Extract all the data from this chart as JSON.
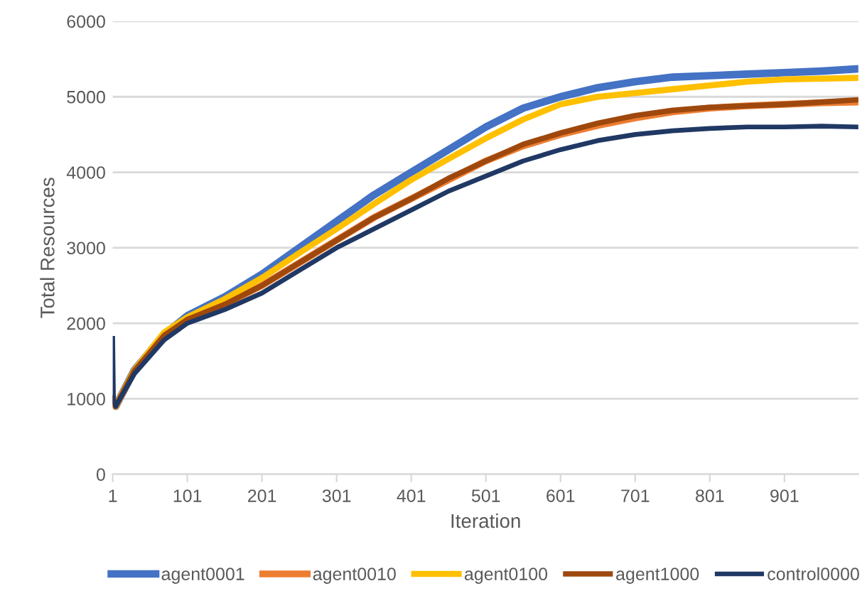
{
  "chart_data": {
    "type": "line",
    "xlabel": "Iteration",
    "ylabel": "Total Resources",
    "xlim": [
      1,
      1000
    ],
    "xticks": [
      1,
      101,
      201,
      301,
      401,
      501,
      601,
      701,
      801,
      901
    ],
    "ylim": [
      0,
      6000
    ],
    "yticks": [
      0,
      1000,
      2000,
      3000,
      4000,
      5000,
      6000
    ],
    "grid": "y",
    "legend": "bottom",
    "marker": "none",
    "line_style": "solid",
    "series": [
      {
        "name": "agent0001",
        "color": "#4472c4",
        "x": [
          1,
          5,
          30,
          70,
          101,
          151,
          201,
          251,
          301,
          351,
          401,
          451,
          501,
          551,
          601,
          651,
          701,
          751,
          801,
          851,
          901,
          951,
          1000
        ],
        "values": [
          1000,
          900,
          1380,
          1850,
          2100,
          2350,
          2650,
          3000,
          3350,
          3700,
          4000,
          4300,
          4600,
          4850,
          5000,
          5120,
          5200,
          5260,
          5280,
          5300,
          5320,
          5340,
          5370
        ]
      },
      {
        "name": "agent0010",
        "color": "#ed7d31",
        "x": [
          1,
          5,
          30,
          70,
          101,
          151,
          201,
          251,
          301,
          351,
          401,
          451,
          501,
          551,
          601,
          651,
          701,
          751,
          801,
          851,
          901,
          951,
          1000
        ],
        "values": [
          1000,
          900,
          1370,
          1850,
          2050,
          2250,
          2500,
          2800,
          3100,
          3400,
          3650,
          3900,
          4150,
          4350,
          4500,
          4620,
          4720,
          4800,
          4850,
          4880,
          4900,
          4920,
          4930
        ]
      },
      {
        "name": "agent0100",
        "color": "#ffc000",
        "x": [
          1,
          5,
          30,
          70,
          101,
          151,
          201,
          251,
          301,
          351,
          401,
          451,
          501,
          551,
          601,
          651,
          701,
          751,
          801,
          851,
          901,
          951,
          1000
        ],
        "values": [
          1000,
          900,
          1380,
          1880,
          2080,
          2320,
          2600,
          2930,
          3250,
          3580,
          3900,
          4180,
          4450,
          4700,
          4900,
          5000,
          5050,
          5100,
          5150,
          5200,
          5230,
          5240,
          5250
        ]
      },
      {
        "name": "agent1000",
        "color": "#9e480e",
        "x": [
          1,
          5,
          30,
          70,
          101,
          151,
          201,
          251,
          301,
          351,
          401,
          451,
          501,
          551,
          601,
          651,
          701,
          751,
          801,
          851,
          901,
          951,
          1000
        ],
        "values": [
          1000,
          900,
          1370,
          1840,
          2050,
          2250,
          2500,
          2800,
          3100,
          3400,
          3650,
          3920,
          4150,
          4370,
          4520,
          4650,
          4750,
          4820,
          4860,
          4880,
          4900,
          4930,
          4960
        ]
      },
      {
        "name": "control0000",
        "color": "#203864",
        "x": [
          1,
          2,
          5,
          30,
          70,
          101,
          151,
          201,
          251,
          301,
          351,
          401,
          451,
          501,
          551,
          601,
          651,
          701,
          751,
          801,
          851,
          901,
          951,
          1000
        ],
        "values": [
          1800,
          1000,
          900,
          1330,
          1780,
          2000,
          2180,
          2400,
          2700,
          3000,
          3250,
          3500,
          3750,
          3950,
          4150,
          4300,
          4420,
          4500,
          4550,
          4580,
          4600,
          4600,
          4610,
          4600
        ]
      }
    ]
  }
}
